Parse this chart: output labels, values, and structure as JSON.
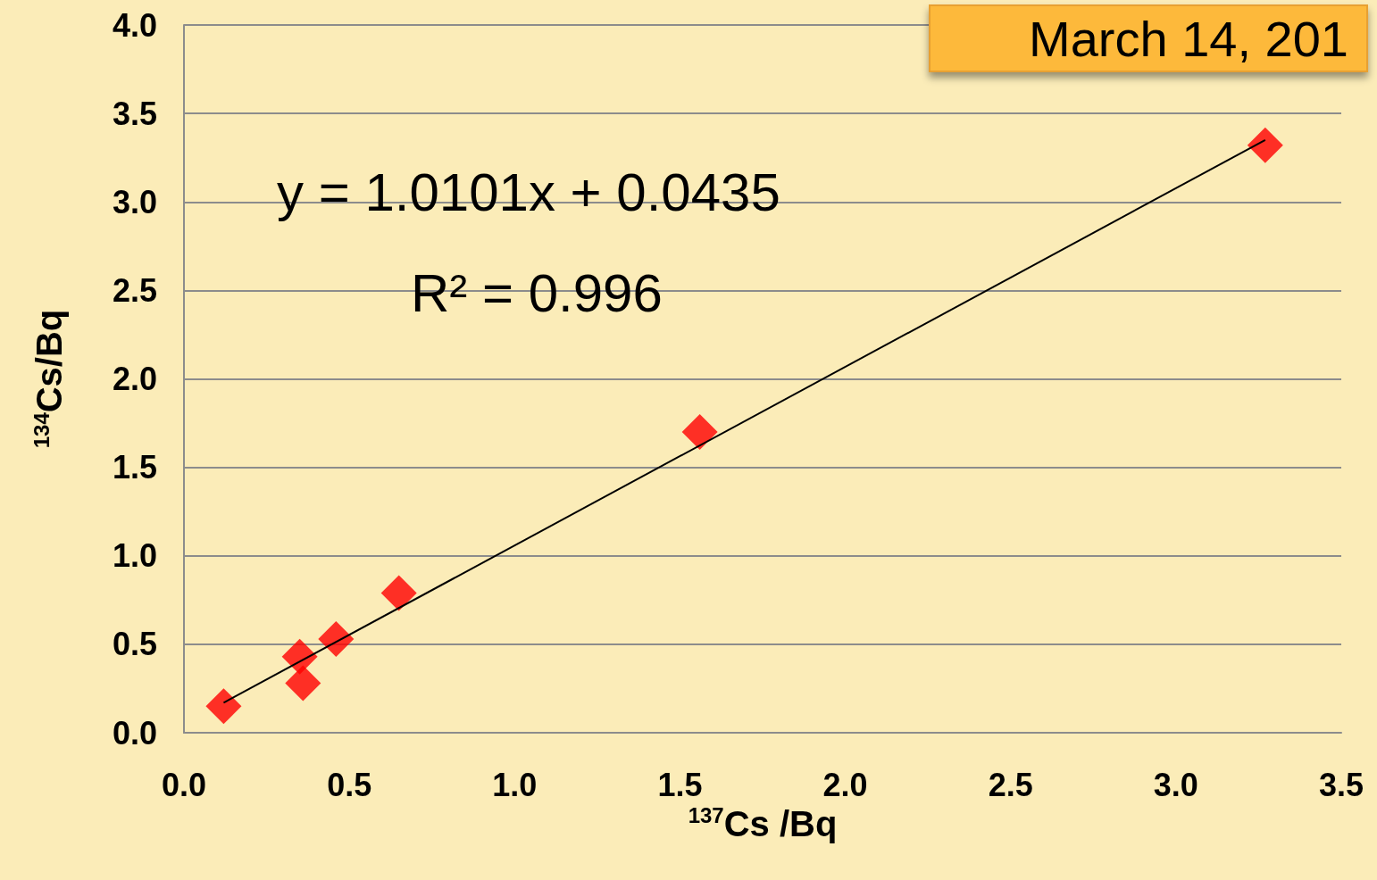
{
  "chart_data": {
    "type": "scatter",
    "xlabel": "$^{137}$Cs /Bq",
    "ylabel": "$^{134}$Cs/Bq",
    "series": [
      {
        "color": "#ff0000",
        "marker": "diamond",
        "x": [
          0.12,
          0.35,
          0.36,
          0.46,
          0.65,
          1.56,
          3.27
        ],
        "values": [
          0.15,
          0.43,
          0.28,
          0.53,
          0.79,
          1.7,
          3.32
        ]
      },
      {
        "type": "line",
        "color": "#000000",
        "marker": "none",
        "x": [
          0.12,
          3.27
        ],
        "values": [
          0.17,
          3.35
        ]
      }
    ],
    "xlim": [
      0,
      3.5
    ],
    "xticks": [
      {
        "value": 0,
        "label": "0.0"
      },
      0.5,
      {
        "value": 1,
        "label": "1.0"
      },
      1.5,
      {
        "value": 2,
        "label": "2.0"
      },
      2.5,
      {
        "value": 3,
        "label": "3.0"
      },
      3.5
    ],
    "ylim": [
      0,
      4
    ],
    "yticks": [
      {
        "value": 0,
        "label": "0.0"
      },
      0.5,
      {
        "value": 1,
        "label": "1.0"
      },
      1.5,
      {
        "value": 2,
        "label": "2.0"
      },
      2.5,
      {
        "value": 3,
        "label": "3.0"
      },
      3.5,
      {
        "value": 4,
        "label": "4.0"
      }
    ],
    "grid": "y",
    "annotations": [
      "y = 1.0101x + 0.0435",
      "R² = 0.996",
      "March 14, 201"
    ]
  }
}
